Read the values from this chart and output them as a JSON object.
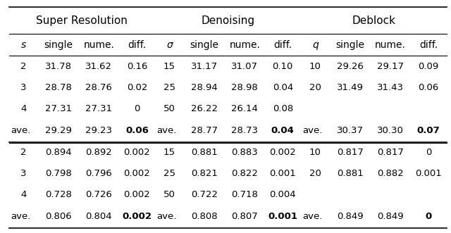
{
  "title_row": [
    "Super Resolution",
    "Denoising",
    "Deblock"
  ],
  "header_row": [
    "s",
    "single",
    "nume.",
    "diff.",
    "σ",
    "single",
    "nume.",
    "diff.",
    "q",
    "single",
    "nume.",
    "diff."
  ],
  "psnr_data": [
    [
      "2",
      "31.78",
      "31.62",
      "0.16",
      "15",
      "31.17",
      "31.07",
      "0.10",
      "10",
      "29.26",
      "29.17",
      "0.09"
    ],
    [
      "3",
      "28.78",
      "28.76",
      "0.02",
      "25",
      "28.94",
      "28.98",
      "0.04",
      "20",
      "31.49",
      "31.43",
      "0.06"
    ],
    [
      "4",
      "27.31",
      "27.31",
      "0",
      "50",
      "26.22",
      "26.14",
      "0.08",
      "",
      "",
      "",
      ""
    ]
  ],
  "psnr_ave": [
    "ave.",
    "29.29",
    "29.23",
    "0.06",
    "ave.",
    "28.77",
    "28.73",
    "0.04",
    "ave.",
    "30.37",
    "30.30",
    "0.07"
  ],
  "ssim_data": [
    [
      "2",
      "0.894",
      "0.892",
      "0.002",
      "15",
      "0.881",
      "0.883",
      "0.002",
      "10",
      "0.817",
      "0.817",
      "0"
    ],
    [
      "3",
      "0.798",
      "0.796",
      "0.002",
      "25",
      "0.821",
      "0.822",
      "0.001",
      "20",
      "0.881",
      "0.882",
      "0.001"
    ],
    [
      "4",
      "0.728",
      "0.726",
      "0.002",
      "50",
      "0.722",
      "0.718",
      "0.004",
      "",
      "",
      "",
      ""
    ]
  ],
  "ssim_ave": [
    "ave.",
    "0.806",
    "0.804",
    "0.002",
    "ave.",
    "0.808",
    "0.807",
    "0.001",
    "ave.",
    "0.849",
    "0.849",
    "0"
  ],
  "background_color": "#ffffff",
  "text_color": "#000000",
  "line_color": "#000000"
}
